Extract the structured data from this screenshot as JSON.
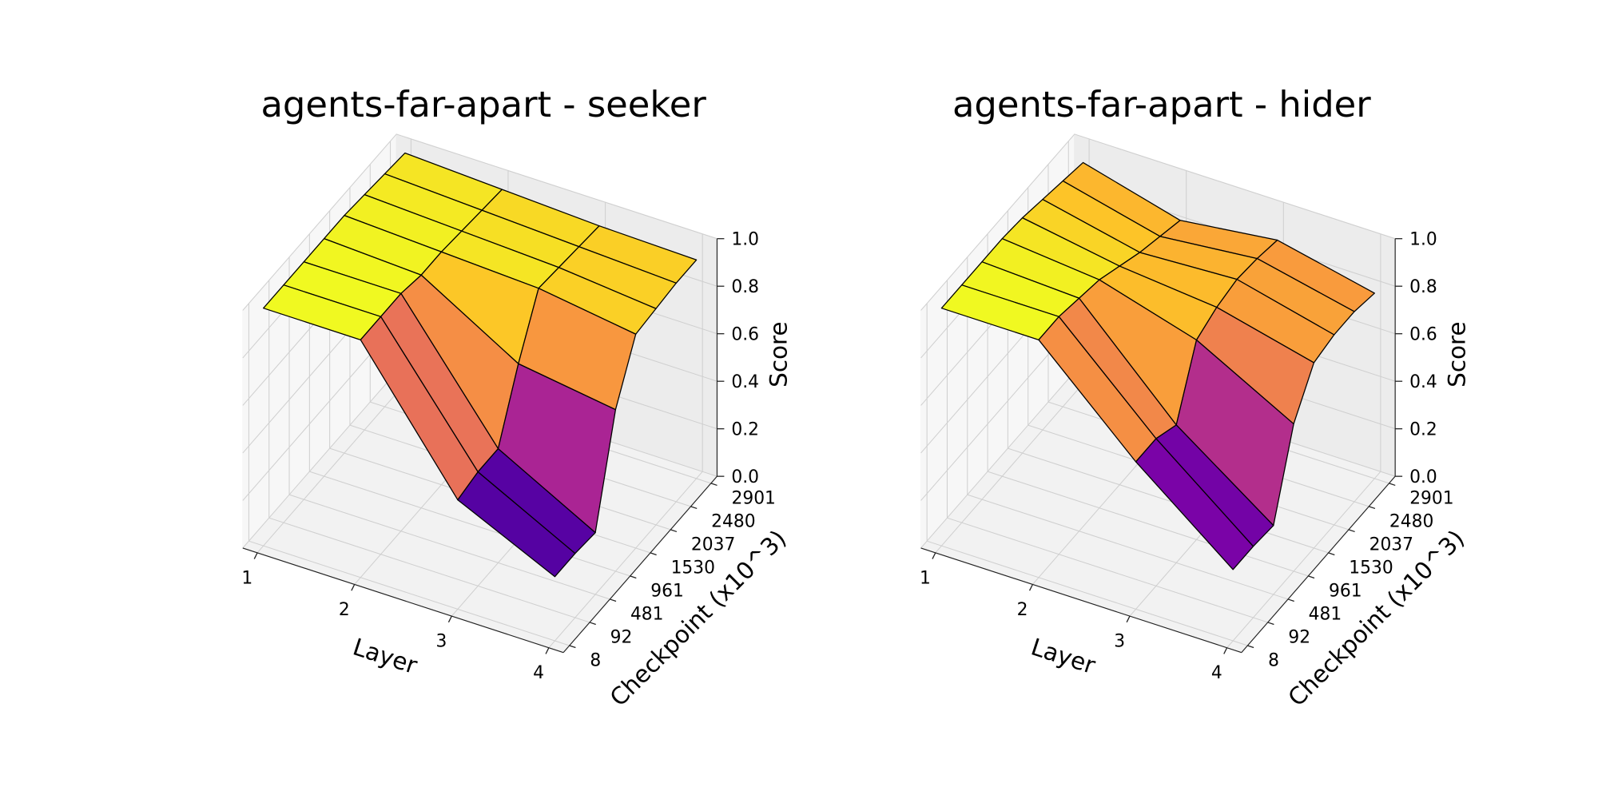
{
  "chart_data": [
    {
      "type": "surface",
      "title": "agents-far-apart - seeker",
      "xlabel": "Layer",
      "ylabel": "Checkpoint (x10^3)",
      "zlabel": "Score",
      "x": [
        1,
        2,
        3,
        4
      ],
      "y": [
        "8",
        "92",
        "481",
        "961",
        "1530",
        "2037",
        "2480",
        "2901"
      ],
      "values": [
        [
          1.0,
          1.0,
          1.0,
          1.0,
          1.0,
          0.99,
          0.98,
          0.97
        ],
        [
          1.0,
          1.0,
          1.0,
          0.98,
          0.98,
          0.97,
          0.96,
          0.95
        ],
        [
          0.46,
          0.48,
          0.48,
          0.74,
          0.96,
          0.95,
          0.94,
          0.93
        ],
        [
          0.27,
          0.27,
          0.26,
          0.68,
          0.9,
          0.91,
          0.92,
          0.92
        ]
      ],
      "colormap": "plasma",
      "edgecolor": "#000000",
      "xlim": [
        0.85,
        4.15
      ],
      "xticks": [
        1,
        2,
        3,
        4
      ],
      "zlim": [
        0,
        1
      ],
      "zticks": [
        {
          "value": 0,
          "label": "0.0"
        },
        0.2,
        0.4,
        0.6,
        0.8,
        {
          "value": 1,
          "label": "1.0"
        }
      ],
      "grid": true
    },
    {
      "type": "surface",
      "title": "agents-far-apart - hider",
      "xlabel": "Layer",
      "ylabel": "Checkpoint (x10^3)",
      "zlabel": "Score",
      "x": [
        1,
        2,
        3,
        4
      ],
      "y": [
        "8",
        "92",
        "481",
        "961",
        "1530",
        "2037",
        "2480",
        "2901"
      ],
      "values": [
        [
          1.0,
          1.0,
          1.0,
          1.0,
          0.99,
          0.97,
          0.95,
          0.93
        ],
        [
          1.0,
          1.0,
          0.98,
          0.96,
          0.92,
          0.88,
          0.85,
          0.82
        ],
        [
          0.62,
          0.62,
          0.58,
          0.84,
          0.88,
          0.9,
          0.89,
          0.87
        ],
        [
          0.3,
          0.3,
          0.29,
          0.62,
          0.78,
          0.8,
          0.8,
          0.78
        ]
      ],
      "colormap": "plasma",
      "edgecolor": "#000000",
      "xlim": [
        0.85,
        4.15
      ],
      "xticks": [
        1,
        2,
        3,
        4
      ],
      "zlim": [
        0,
        1
      ],
      "zticks": [
        {
          "value": 0,
          "label": "0.0"
        },
        0.2,
        0.4,
        0.6,
        0.8,
        {
          "value": 1,
          "label": "1.0"
        }
      ],
      "grid": true
    }
  ]
}
